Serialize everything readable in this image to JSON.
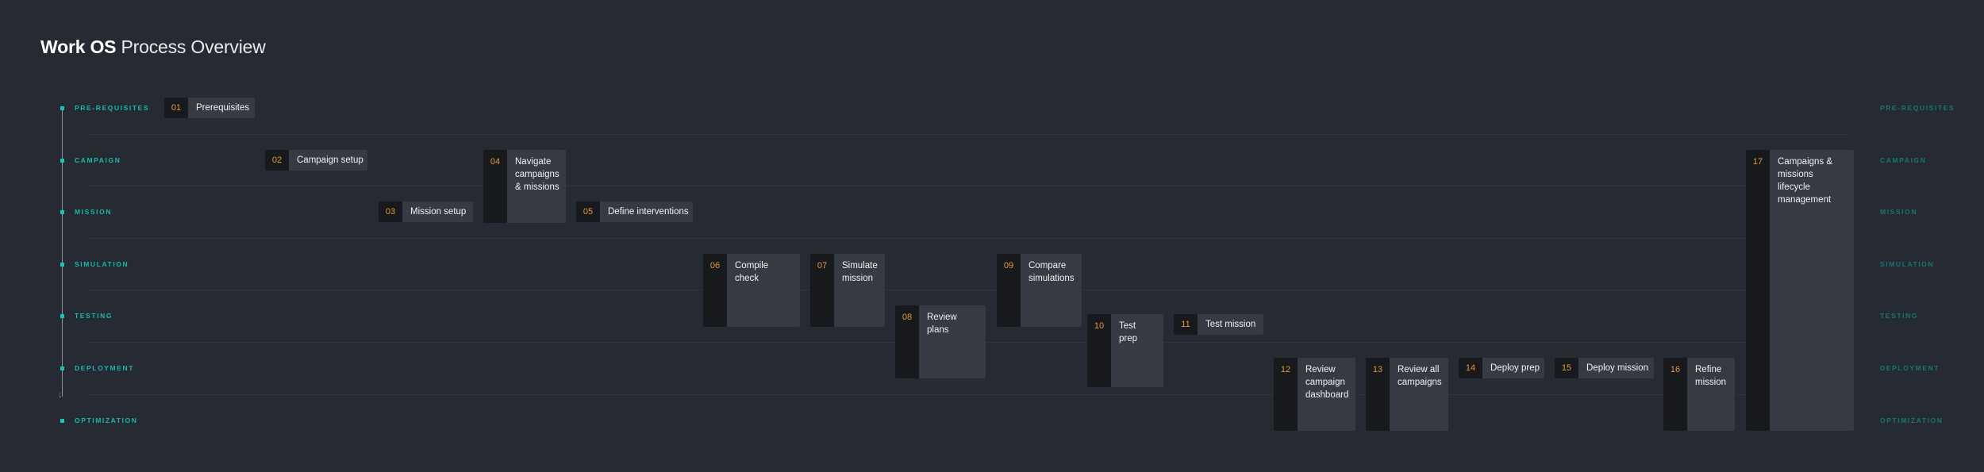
{
  "header": {
    "title_bold": "Work OS",
    "title_light": "Process Overview"
  },
  "stages": [
    {
      "id": "prerequisites",
      "label": "PRE-REQUISITES"
    },
    {
      "id": "campaign",
      "label": "CAMPAIGN"
    },
    {
      "id": "mission",
      "label": "MISSION"
    },
    {
      "id": "simulation",
      "label": "SIMULATION"
    },
    {
      "id": "testing",
      "label": "TESTING"
    },
    {
      "id": "deployment",
      "label": "DEPLOYMENT"
    },
    {
      "id": "optimization",
      "label": "OPTIMIZATION"
    }
  ],
  "steps": [
    {
      "num": "01",
      "label": "Prerequisites",
      "stage": "prerequisites"
    },
    {
      "num": "02",
      "label": "Campaign setup",
      "stage": "campaign"
    },
    {
      "num": "03",
      "label": "Mission setup",
      "stage": "mission"
    },
    {
      "num": "04",
      "label": "Navigate campaigns & missions",
      "stage": "campaign"
    },
    {
      "num": "05",
      "label": "Define interventions",
      "stage": "mission"
    },
    {
      "num": "06",
      "label": "Compile check",
      "stage": "simulation"
    },
    {
      "num": "07",
      "label": "Simulate mission",
      "stage": "simulation"
    },
    {
      "num": "08",
      "label": "Review plans",
      "stage": "testing"
    },
    {
      "num": "09",
      "label": "Compare simulations",
      "stage": "simulation"
    },
    {
      "num": "10",
      "label": "Test prep",
      "stage": "testing"
    },
    {
      "num": "11",
      "label": "Test mission",
      "stage": "testing"
    },
    {
      "num": "12",
      "label": "Review campaign dashboard",
      "stage": "deployment"
    },
    {
      "num": "13",
      "label": "Review all campaigns",
      "stage": "deployment"
    },
    {
      "num": "14",
      "label": "Deploy prep",
      "stage": "deployment"
    },
    {
      "num": "15",
      "label": "Deploy mission",
      "stage": "deployment"
    },
    {
      "num": "16",
      "label": "Refine mission",
      "stage": "deployment"
    },
    {
      "num": "17",
      "label": "Campaigns & missions lifecycle management",
      "stage": "campaign"
    }
  ],
  "colors": {
    "background": "#262a33",
    "accent_teal": "#19c2b4",
    "number_orange": "#e39a3a",
    "number_bg": "#18191d",
    "label_bg": "#363a43"
  }
}
